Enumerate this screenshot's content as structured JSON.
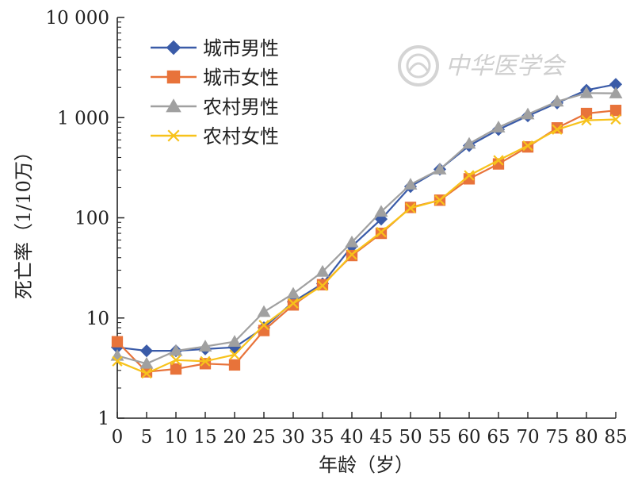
{
  "chart_data": {
    "type": "line",
    "xlabel": "年龄（岁）",
    "ylabel": "死亡率（1/10万）",
    "y_scale": "log",
    "ylim": [
      1,
      10000
    ],
    "xlim": [
      0,
      85
    ],
    "x": [
      0,
      5,
      10,
      15,
      20,
      25,
      30,
      35,
      40,
      45,
      50,
      55,
      60,
      65,
      70,
      75,
      80,
      85
    ],
    "x_tick_labels": [
      "0",
      "5",
      "10",
      "15",
      "20",
      "25",
      "30",
      "35",
      "40",
      "45",
      "50",
      "55",
      "60",
      "65",
      "70",
      "75",
      "80",
      "85"
    ],
    "y_ticks": [
      1,
      10,
      100,
      1000,
      10000
    ],
    "y_tick_labels": [
      "1",
      "10",
      "100",
      "1 000",
      "10 000"
    ],
    "grid": false,
    "legend_position": "top-left",
    "series": [
      {
        "name": "城市男性",
        "color": "#3a5ba8",
        "marker": "diamond",
        "values": [
          5.1,
          4.7,
          4.7,
          4.9,
          5.1,
          8.0,
          14.5,
          22,
          52,
          97,
          205,
          305,
          525,
          760,
          1040,
          1400,
          1880,
          2150
        ]
      },
      {
        "name": "城市女性",
        "color": "#e8733a",
        "marker": "square",
        "values": [
          5.8,
          2.9,
          3.1,
          3.5,
          3.4,
          7.5,
          13.5,
          21.5,
          42,
          70,
          127,
          150,
          245,
          345,
          510,
          790,
          1100,
          1180
        ]
      },
      {
        "name": "农村男性",
        "color": "#a0a0a0",
        "marker": "triangle",
        "values": [
          4.2,
          3.5,
          4.7,
          5.2,
          5.8,
          11.5,
          17.5,
          29,
          57,
          115,
          215,
          305,
          550,
          800,
          1080,
          1450,
          1760,
          1750
        ]
      },
      {
        "name": "农村女性",
        "color": "#f7c21b",
        "marker": "x",
        "values": [
          3.7,
          2.8,
          3.8,
          3.7,
          4.3,
          8.5,
          14.0,
          21.0,
          43,
          72,
          125,
          150,
          265,
          375,
          525,
          760,
          940,
          960
        ]
      }
    ],
    "watermark": {
      "icon": "society-emblem-icon",
      "text": "中华医学会"
    }
  }
}
